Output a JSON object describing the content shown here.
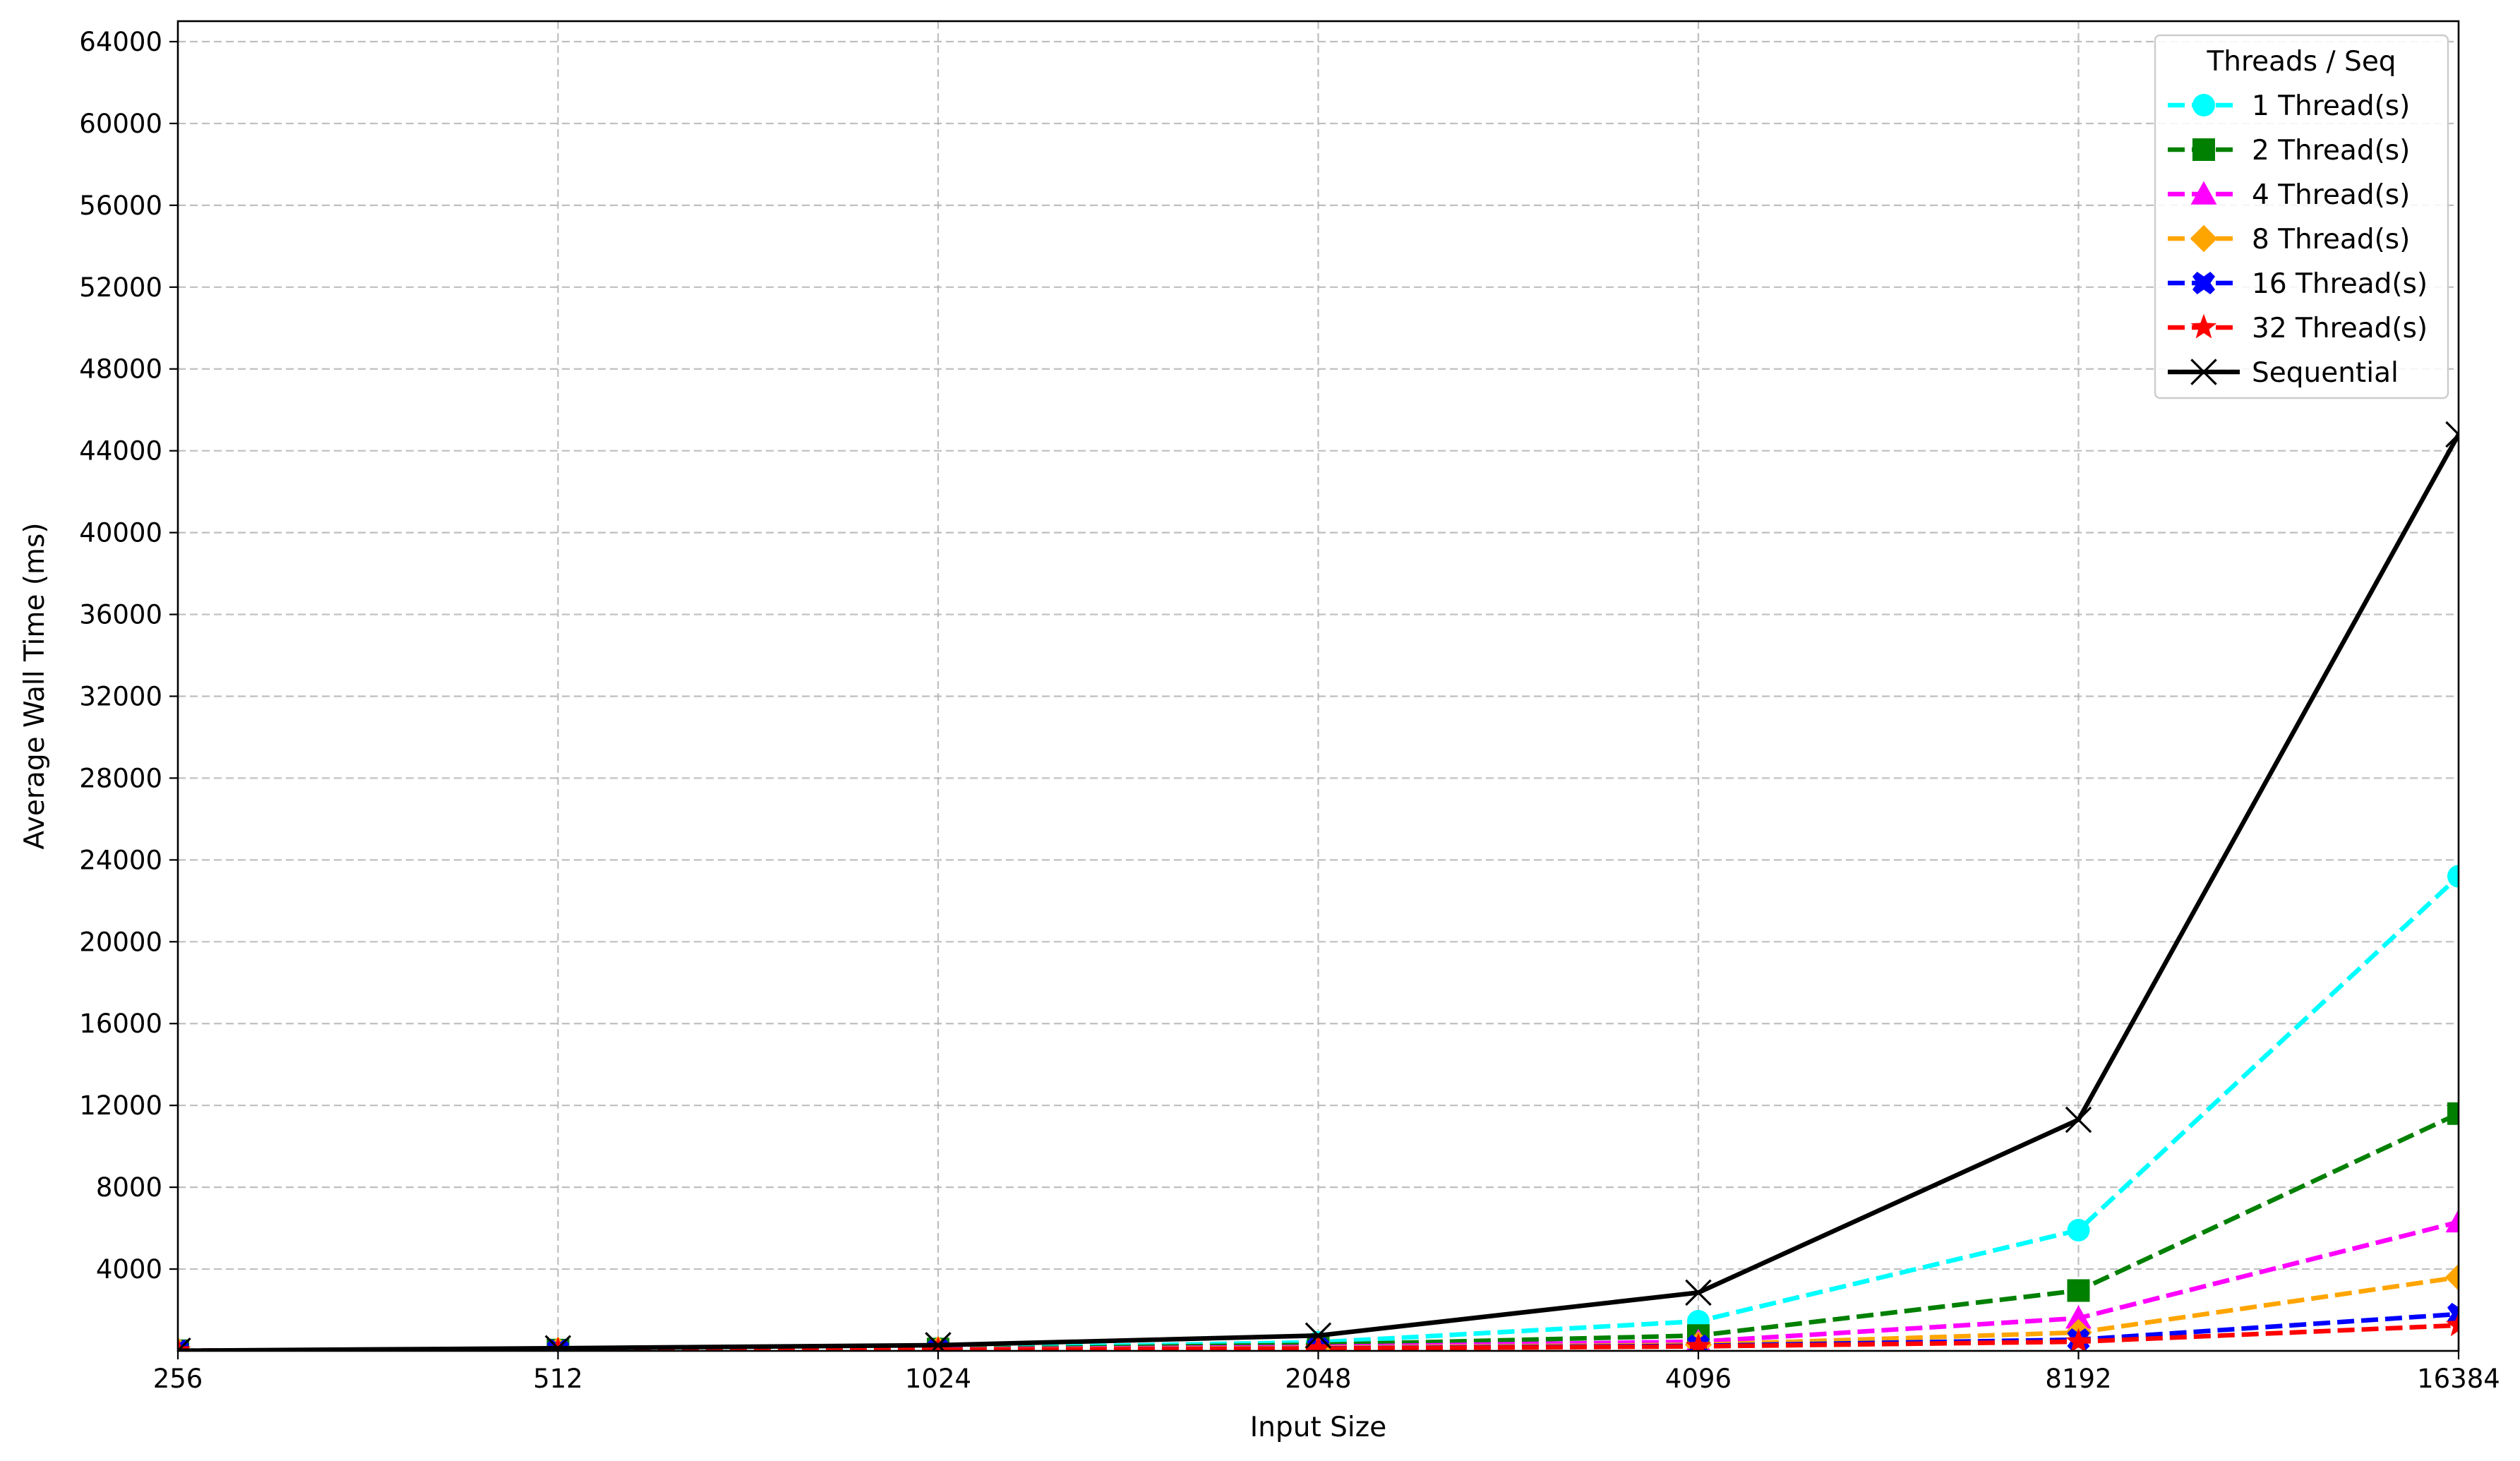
{
  "chart_data": {
    "type": "line",
    "title": "",
    "xlabel": "Input Size",
    "ylabel": "Average Wall Time (ms)",
    "x_scale": "log2",
    "x": [
      256,
      512,
      1024,
      2048,
      4096,
      8192,
      16384
    ],
    "x_tick_labels": [
      "256",
      "512",
      "1024",
      "2048",
      "4096",
      "8192",
      "16384"
    ],
    "ylim": [
      0,
      65000
    ],
    "y_ticks": [
      4000,
      8000,
      12000,
      16000,
      20000,
      24000,
      28000,
      32000,
      36000,
      40000,
      44000,
      48000,
      52000,
      56000,
      60000,
      64000
    ],
    "y_tick_labels": [
      "4000",
      "8000",
      "12000",
      "16000",
      "20000",
      "24000",
      "28000",
      "32000",
      "36000",
      "40000",
      "44000",
      "48000",
      "52000",
      "56000",
      "60000",
      "64000"
    ],
    "grid": true,
    "legend": {
      "title": "Threads / Seq",
      "placement": "top-right"
    },
    "series": [
      {
        "name": "1 Thread(s)",
        "color": "#00ffff",
        "marker": "circle",
        "line": "dashed",
        "values": [
          10,
          60,
          120,
          420,
          1450,
          5900,
          23200
        ]
      },
      {
        "name": "2 Thread(s)",
        "color": "#008000",
        "marker": "square",
        "line": "dashed",
        "values": [
          10,
          40,
          90,
          300,
          750,
          2950,
          11600
        ]
      },
      {
        "name": "4 Thread(s)",
        "color": "#ff00ff",
        "marker": "triangle",
        "line": "dashed",
        "values": [
          10,
          30,
          70,
          200,
          450,
          1600,
          6300
        ]
      },
      {
        "name": "8 Thread(s)",
        "color": "#ffa500",
        "marker": "diamond",
        "line": "dashed",
        "values": [
          10,
          30,
          60,
          150,
          300,
          900,
          3600
        ]
      },
      {
        "name": "16 Thread(s)",
        "color": "#0000ff",
        "marker": "x-filled",
        "line": "dashed",
        "values": [
          10,
          25,
          50,
          120,
          250,
          550,
          1800
        ]
      },
      {
        "name": "32 Thread(s)",
        "color": "#ff0000",
        "marker": "star",
        "line": "dashed",
        "values": [
          10,
          25,
          50,
          110,
          220,
          450,
          1250
        ]
      },
      {
        "name": "Sequential",
        "color": "#000000",
        "marker": "x",
        "line": "solid",
        "values": [
          10,
          130,
          280,
          750,
          2850,
          11300,
          44800
        ]
      }
    ]
  }
}
